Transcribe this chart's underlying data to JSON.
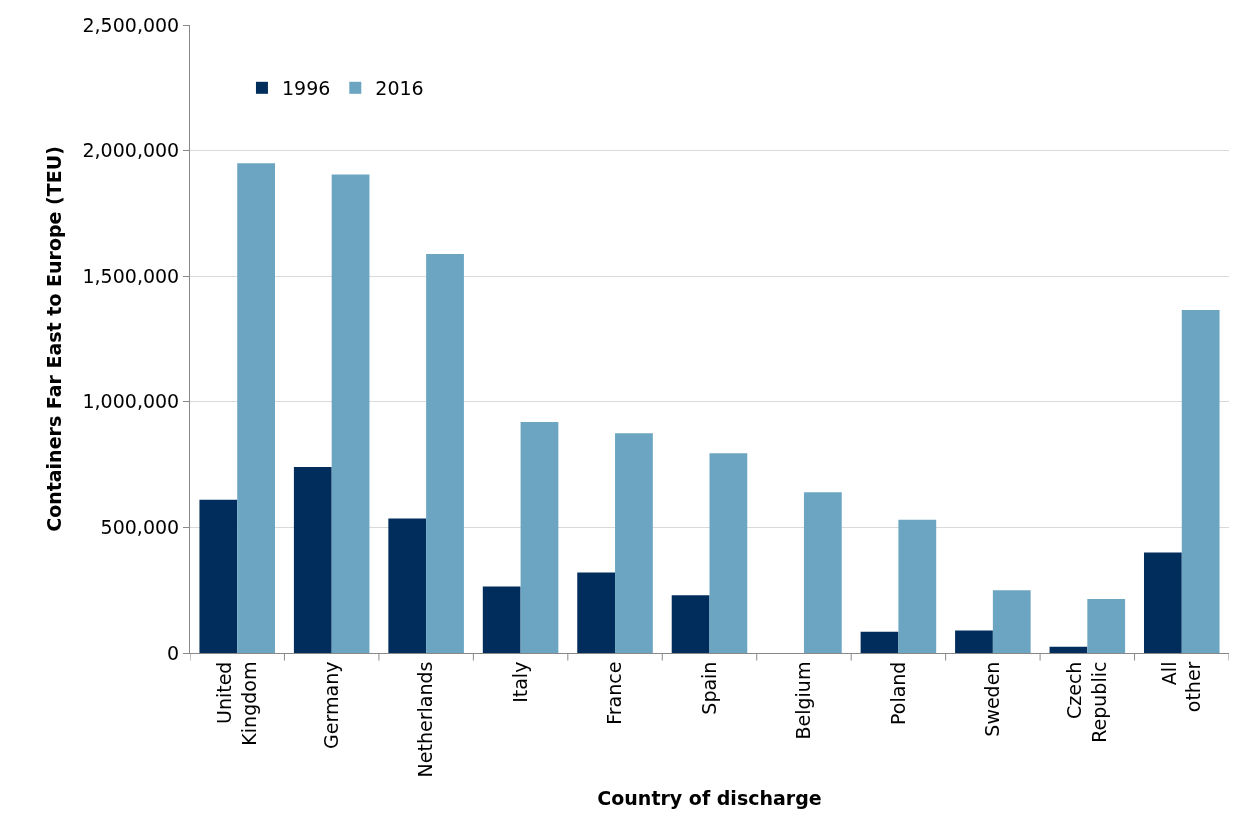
{
  "chart_data": {
    "type": "bar",
    "xlabel": "Country of discharge",
    "ylabel": "Containers Far East to Europe (TEU)",
    "categories": [
      "United Kingdom",
      "Germany",
      "Netherlands",
      "Italy",
      "France",
      "Spain",
      "Belgium",
      "Poland",
      "Sweden",
      "Czech Republic",
      "All other"
    ],
    "series": [
      {
        "name": "1996",
        "color": "#002d5b",
        "values": [
          610000,
          740000,
          535000,
          265000,
          320000,
          230000,
          null,
          85000,
          90000,
          25000,
          400000
        ]
      },
      {
        "name": "2016",
        "color": "#6ba5c2",
        "values": [
          1950000,
          1905000,
          1588000,
          920000,
          875000,
          795000,
          640000,
          530000,
          250000,
          215000,
          1365000
        ]
      }
    ],
    "ylim": [
      0,
      2500000
    ],
    "yticks": [
      {
        "value": 0,
        "label": "0"
      },
      {
        "value": 500000,
        "label": "500,000"
      },
      {
        "value": 1000000,
        "label": "1,000,000"
      },
      {
        "value": 1500000,
        "label": "1,500,000"
      },
      {
        "value": 2000000,
        "label": "2,000,000"
      },
      {
        "value": 2500000,
        "label": "2,500,000"
      }
    ],
    "grid": "y",
    "legend": "top left"
  }
}
